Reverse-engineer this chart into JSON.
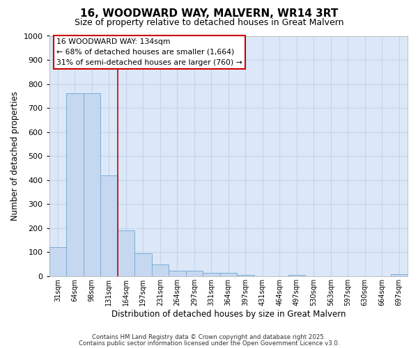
{
  "title1": "16, WOODWARD WAY, MALVERN, WR14 3RT",
  "title2": "Size of property relative to detached houses in Great Malvern",
  "xlabel": "Distribution of detached houses by size in Great Malvern",
  "ylabel": "Number of detached properties",
  "categories": [
    "31sqm",
    "64sqm",
    "98sqm",
    "131sqm",
    "164sqm",
    "197sqm",
    "231sqm",
    "264sqm",
    "297sqm",
    "331sqm",
    "364sqm",
    "397sqm",
    "431sqm",
    "464sqm",
    "497sqm",
    "530sqm",
    "563sqm",
    "597sqm",
    "630sqm",
    "664sqm",
    "697sqm"
  ],
  "values": [
    120,
    760,
    760,
    420,
    190,
    95,
    50,
    22,
    22,
    15,
    15,
    5,
    0,
    0,
    5,
    0,
    0,
    0,
    0,
    0,
    8
  ],
  "bar_color": "#c5d8f0",
  "bar_edge_color": "#7aadd4",
  "red_line_index": 3,
  "ylim": [
    0,
    1000
  ],
  "yticks": [
    0,
    100,
    200,
    300,
    400,
    500,
    600,
    700,
    800,
    900,
    1000
  ],
  "annotation_line1": "16 WOODWARD WAY: 134sqm",
  "annotation_line2": "← 68% of detached houses are smaller (1,664)",
  "annotation_line3": "31% of semi-detached houses are larger (760) →",
  "annotation_box_facecolor": "#ffffff",
  "annotation_box_edgecolor": "#cc0000",
  "footer1": "Contains HM Land Registry data © Crown copyright and database right 2025.",
  "footer2": "Contains public sector information licensed under the Open Government Licence v3.0.",
  "plot_bg_color": "#dce8f8",
  "fig_bg_color": "#ffffff",
  "grid_color": "#c5d4e8"
}
